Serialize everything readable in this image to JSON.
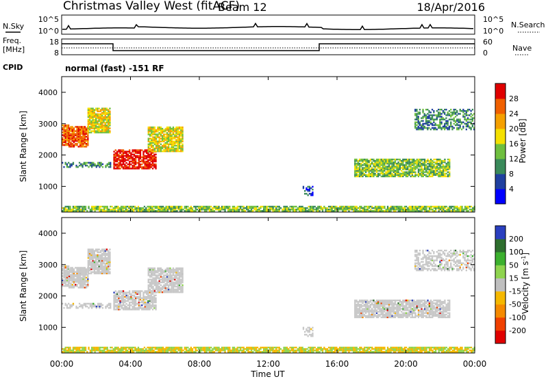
{
  "header": {
    "title": "Christmas Valley West (fitACF)",
    "beam": "Beam 12",
    "date": "18/Apr/2016"
  },
  "noise_panel": {
    "left_label": "N.Sky",
    "right_label": "N.Search",
    "left_ticks": [
      "10^5",
      "10^0"
    ],
    "right_ticks": [
      "10^5",
      "10^0"
    ]
  },
  "freq_panel": {
    "left_label_1": "Freq.",
    "left_label_2": "[MHz]",
    "right_label": "Nave",
    "left_ticks": [
      "18",
      "8"
    ],
    "right_ticks": [
      "60",
      "0"
    ]
  },
  "cpid_panel": {
    "label": "CPID",
    "text": "normal (fast) -151 RF"
  },
  "colors": {
    "power": [
      "#0000ff",
      "#2040a0",
      "#3a8a5a",
      "#6fbf3f",
      "#f5e000",
      "#f5a000",
      "#f06000",
      "#e00000"
    ],
    "velocity": [
      "#2a3fbf",
      "#2e6e2e",
      "#3cb02e",
      "#8fd44f",
      "#bfbfbf",
      "#f5b800",
      "#f58a00",
      "#f04000",
      "#e00000"
    ],
    "background_scatter": "#c8c8c8"
  },
  "chart_data": [
    {
      "type": "heatmap",
      "name": "power",
      "ylabel": "Slant Range [km]",
      "xlabel": "",
      "ylim": [
        180,
        4500
      ],
      "yticks": [
        "1000",
        "2000",
        "3000",
        "4000"
      ],
      "colorbar_label": "Power [dB]",
      "colorbar_ticks": [
        "4",
        "8",
        "12",
        "16",
        "20",
        "24",
        "28"
      ],
      "features": [
        {
          "t": [
            0.0,
            0.4
          ],
          "range": [
            2300,
            2950
          ],
          "level": 6
        },
        {
          "t": [
            0.4,
            1.5
          ],
          "range": [
            2250,
            2900
          ],
          "level": 6
        },
        {
          "t": [
            1.5,
            2.8
          ],
          "range": [
            2700,
            3500
          ],
          "level": 4
        },
        {
          "t": [
            0.0,
            2.8
          ],
          "range": [
            1600,
            1750
          ],
          "level": 2
        },
        {
          "t": [
            3.0,
            5.5
          ],
          "range": [
            1550,
            2150
          ],
          "level": 7
        },
        {
          "t": [
            5.0,
            7.0
          ],
          "range": [
            2100,
            2900
          ],
          "level": 4
        },
        {
          "t": [
            14.0,
            14.6
          ],
          "range": [
            700,
            1000
          ],
          "level": 1
        },
        {
          "t": [
            17.0,
            22.5
          ],
          "range": [
            1300,
            1850
          ],
          "level": 3
        },
        {
          "t": [
            20.5,
            24.0
          ],
          "range": [
            2800,
            3450
          ],
          "level": 2
        },
        {
          "t": [
            0.0,
            24.0
          ],
          "range": [
            200,
            350
          ],
          "level": 3
        }
      ]
    },
    {
      "type": "heatmap",
      "name": "velocity",
      "ylabel": "Slant Range [km]",
      "xlabel": "Time UT",
      "ylim": [
        180,
        4500
      ],
      "yticks": [
        "1000",
        "2000",
        "3000",
        "4000"
      ],
      "xticks": [
        "00:00",
        "04:00",
        "08:00",
        "12:00",
        "16:00",
        "20:00",
        "00:00"
      ],
      "colorbar_label": "Velocity [m s-1]",
      "colorbar_ticks": [
        "200",
        "100",
        "50",
        "15",
        "-15",
        "-50",
        "-100",
        "-200"
      ]
    }
  ]
}
